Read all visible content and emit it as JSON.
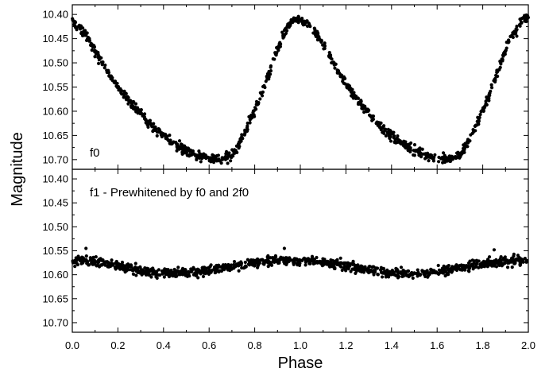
{
  "chart_data": [
    {
      "type": "scatter",
      "panel": "top",
      "annotation": "f0",
      "ylabel": "Magnitude",
      "xlabel": "Phase",
      "xlim": [
        0.0,
        2.0
      ],
      "ylim": [
        10.72,
        10.38
      ],
      "y_inverted": true,
      "x_ticks": [
        "0.0",
        "0.2",
        "0.4",
        "0.6",
        "0.8",
        "1.0",
        "1.2",
        "1.4",
        "1.6",
        "1.8",
        "2.0"
      ],
      "y_ticks": [
        "10.40",
        "10.45",
        "10.50",
        "10.55",
        "10.60",
        "10.65",
        "10.70"
      ],
      "marker_color": "#000000",
      "curve_points": [
        {
          "x": 0.0,
          "y": 10.415
        },
        {
          "x": 0.05,
          "y": 10.435
        },
        {
          "x": 0.1,
          "y": 10.475
        },
        {
          "x": 0.15,
          "y": 10.515
        },
        {
          "x": 0.2,
          "y": 10.55
        },
        {
          "x": 0.25,
          "y": 10.58
        },
        {
          "x": 0.3,
          "y": 10.605
        },
        {
          "x": 0.35,
          "y": 10.63
        },
        {
          "x": 0.4,
          "y": 10.65
        },
        {
          "x": 0.45,
          "y": 10.668
        },
        {
          "x": 0.5,
          "y": 10.682
        },
        {
          "x": 0.55,
          "y": 10.692
        },
        {
          "x": 0.6,
          "y": 10.698
        },
        {
          "x": 0.65,
          "y": 10.7
        },
        {
          "x": 0.7,
          "y": 10.69
        },
        {
          "x": 0.73,
          "y": 10.67
        },
        {
          "x": 0.76,
          "y": 10.64
        },
        {
          "x": 0.8,
          "y": 10.6
        },
        {
          "x": 0.84,
          "y": 10.55
        },
        {
          "x": 0.88,
          "y": 10.5
        },
        {
          "x": 0.92,
          "y": 10.45
        },
        {
          "x": 0.96,
          "y": 10.415
        },
        {
          "x": 1.0,
          "y": 10.41
        },
        {
          "x": 1.05,
          "y": 10.425
        },
        {
          "x": 1.1,
          "y": 10.46
        },
        {
          "x": 1.15,
          "y": 10.505
        },
        {
          "x": 1.2,
          "y": 10.545
        },
        {
          "x": 1.25,
          "y": 10.575
        },
        {
          "x": 1.3,
          "y": 10.605
        },
        {
          "x": 1.35,
          "y": 10.63
        },
        {
          "x": 1.4,
          "y": 10.65
        },
        {
          "x": 1.45,
          "y": 10.668
        },
        {
          "x": 1.5,
          "y": 10.682
        },
        {
          "x": 1.55,
          "y": 10.692
        },
        {
          "x": 1.6,
          "y": 10.698
        },
        {
          "x": 1.65,
          "y": 10.7
        },
        {
          "x": 1.7,
          "y": 10.69
        },
        {
          "x": 1.73,
          "y": 10.67
        },
        {
          "x": 1.76,
          "y": 10.64
        },
        {
          "x": 1.8,
          "y": 10.6
        },
        {
          "x": 1.84,
          "y": 10.55
        },
        {
          "x": 1.88,
          "y": 10.5
        },
        {
          "x": 1.92,
          "y": 10.45
        },
        {
          "x": 1.96,
          "y": 10.42
        },
        {
          "x": 2.0,
          "y": 10.405
        }
      ]
    },
    {
      "type": "scatter",
      "panel": "bottom",
      "annotation": "f1 - Prewhitened by f0 and 2f0",
      "ylabel": "Magnitude",
      "xlabel": "Phase",
      "xlim": [
        0.0,
        2.0
      ],
      "ylim": [
        10.72,
        10.38
      ],
      "y_inverted": true,
      "x_ticks": [
        "0.0",
        "0.2",
        "0.4",
        "0.6",
        "0.8",
        "1.0",
        "1.2",
        "1.4",
        "1.6",
        "1.8",
        "2.0"
      ],
      "y_ticks": [
        "10.40",
        "10.45",
        "10.50",
        "10.55",
        "10.60",
        "10.65",
        "10.70"
      ],
      "marker_color": "#000000",
      "curve_points": [
        {
          "x": 0.0,
          "y": 10.57
        },
        {
          "x": 0.1,
          "y": 10.572
        },
        {
          "x": 0.2,
          "y": 10.58
        },
        {
          "x": 0.3,
          "y": 10.592
        },
        {
          "x": 0.4,
          "y": 10.598
        },
        {
          "x": 0.5,
          "y": 10.596
        },
        {
          "x": 0.6,
          "y": 10.59
        },
        {
          "x": 0.7,
          "y": 10.582
        },
        {
          "x": 0.8,
          "y": 10.575
        },
        {
          "x": 0.9,
          "y": 10.57
        },
        {
          "x": 1.0,
          "y": 10.57
        },
        {
          "x": 1.1,
          "y": 10.573
        },
        {
          "x": 1.2,
          "y": 10.58
        },
        {
          "x": 1.3,
          "y": 10.59
        },
        {
          "x": 1.4,
          "y": 10.597
        },
        {
          "x": 1.5,
          "y": 10.598
        },
        {
          "x": 1.6,
          "y": 10.593
        },
        {
          "x": 1.7,
          "y": 10.585
        },
        {
          "x": 1.8,
          "y": 10.578
        },
        {
          "x": 1.9,
          "y": 10.572
        },
        {
          "x": 2.0,
          "y": 10.57
        }
      ],
      "outliers": [
        {
          "x": 0.06,
          "y": 10.545
        },
        {
          "x": 0.93,
          "y": 10.545
        },
        {
          "x": 1.85,
          "y": 10.548
        }
      ]
    }
  ],
  "axes": {
    "ylabel": "Magnitude",
    "xlabel": "Phase"
  }
}
